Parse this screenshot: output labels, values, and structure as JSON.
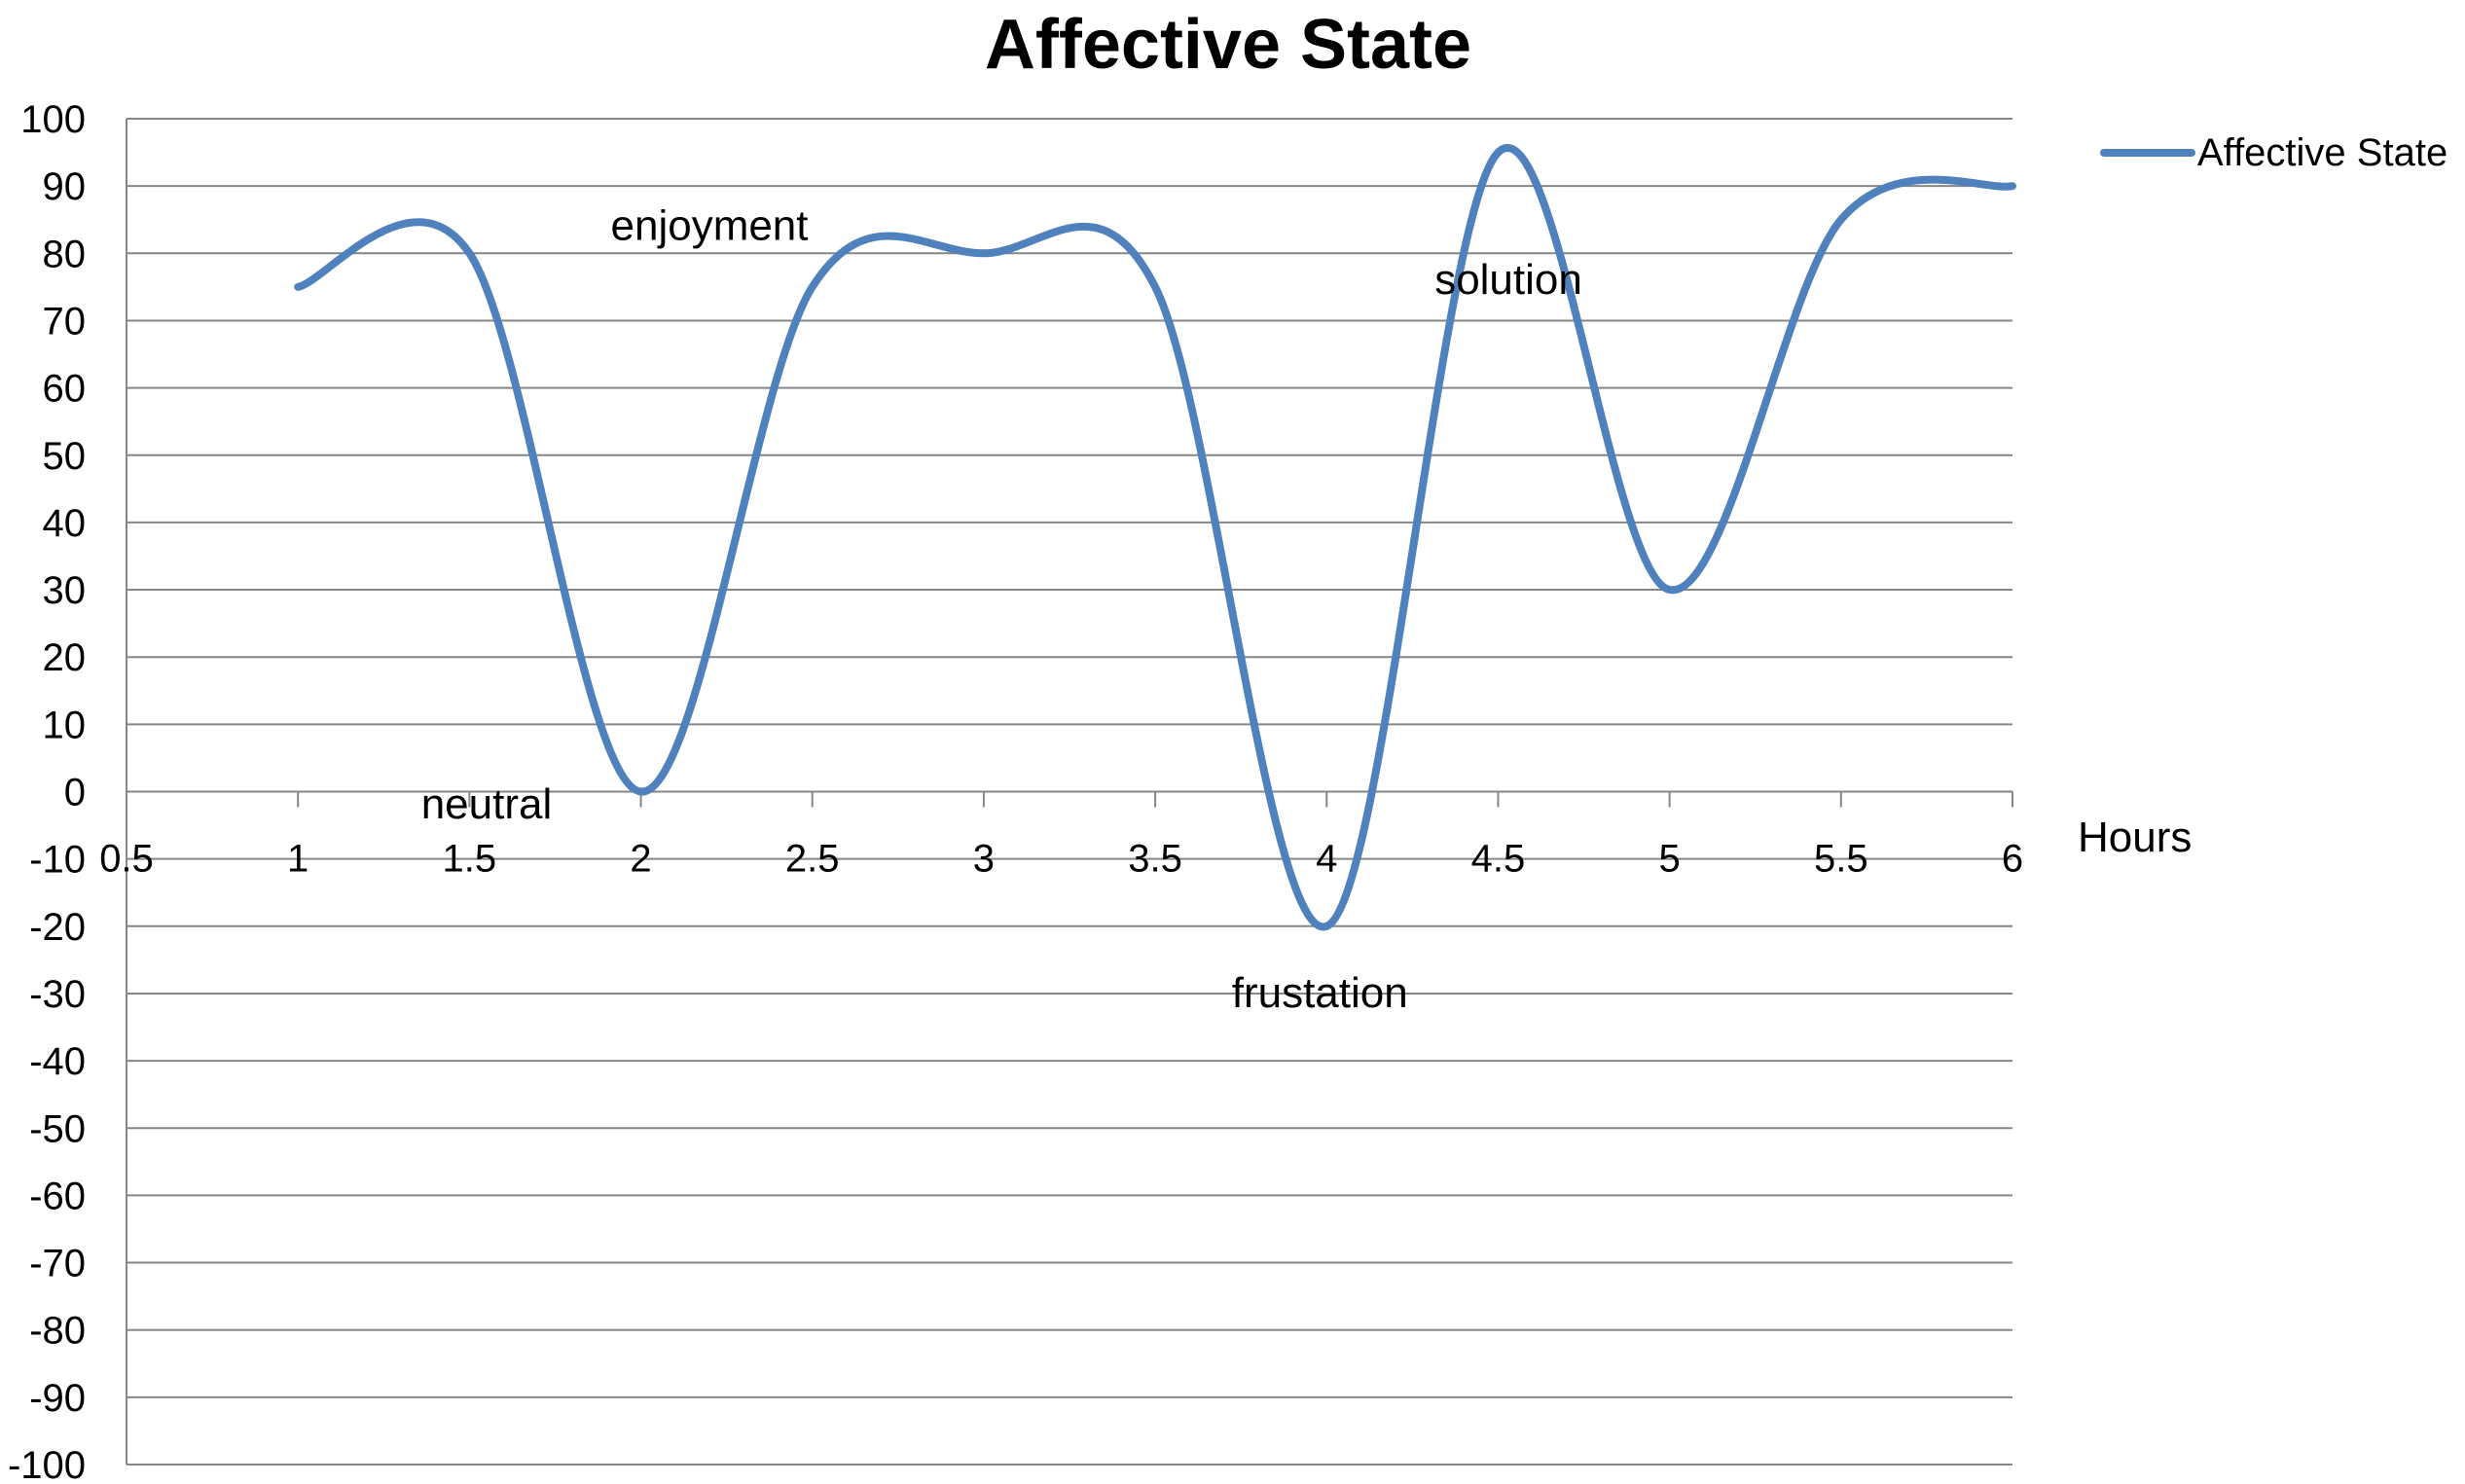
{
  "chart_data": {
    "type": "line",
    "title": "Affective State",
    "xlabel": "Hours",
    "ylabel": "",
    "xlim": [
      0.5,
      6
    ],
    "ylim": [
      -100,
      100
    ],
    "x_ticks": [
      "0.5",
      "1",
      "1.5",
      "2",
      "2.5",
      "3",
      "3.5",
      "4",
      "4.5",
      "5",
      "5.5",
      "6"
    ],
    "y_ticks": [
      "100",
      "90",
      "80",
      "70",
      "60",
      "50",
      "40",
      "30",
      "20",
      "10",
      "0",
      "-10",
      "-20",
      "-30",
      "-40",
      "-50",
      "-60",
      "-70",
      "-80",
      "-90",
      "-100"
    ],
    "grid": true,
    "legend_position": "top-right",
    "smooth": true,
    "series": [
      {
        "name": "Affective State",
        "color": "#4f81bd",
        "x": [
          1,
          1.5,
          2,
          2.5,
          3,
          3.5,
          4,
          4.5,
          5,
          5.5,
          6
        ],
        "y": [
          75,
          80,
          0,
          75,
          80,
          75,
          -20,
          95,
          30,
          85,
          90
        ]
      }
    ],
    "annotations": [
      {
        "text": "neutral",
        "x": 1.55,
        "y": -4
      },
      {
        "text": "enjoyment",
        "x": 2.2,
        "y": 82
      },
      {
        "text": "solution",
        "x": 4.53,
        "y": 74
      },
      {
        "text": "frustation",
        "x": 3.98,
        "y": -32
      }
    ]
  }
}
